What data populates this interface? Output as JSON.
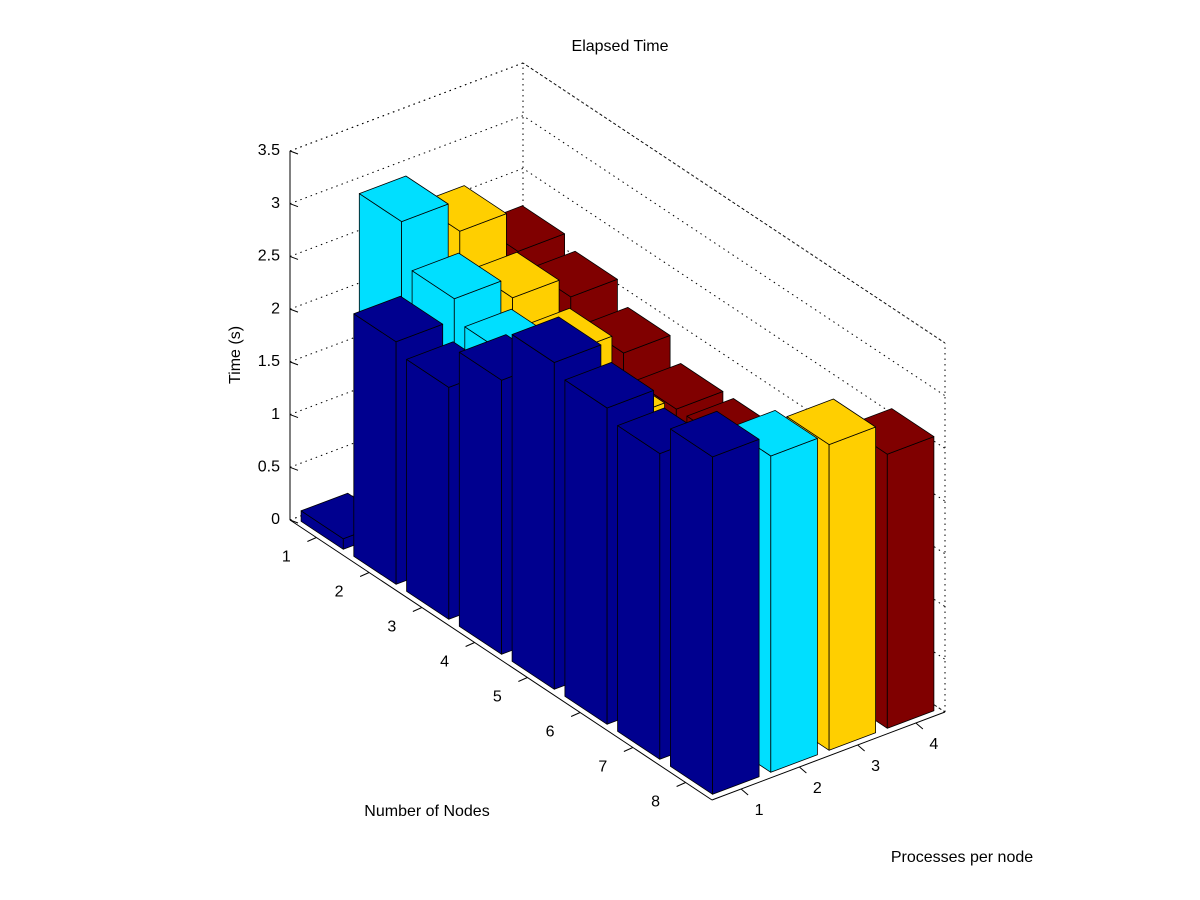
{
  "chart_data": {
    "type": "bar3d",
    "title": "Elapsed Time",
    "xlabel": "Number of Nodes",
    "ylabel": "Processes per node",
    "zlabel": "Time (s)",
    "categories": [
      "1",
      "2",
      "3",
      "4",
      "5",
      "6",
      "7",
      "8"
    ],
    "series": [
      {
        "name": "1",
        "color": "#00008f",
        "values": [
          0.1,
          2.3,
          2.2,
          2.6,
          3.1,
          3.0,
          2.9,
          3.2
        ]
      },
      {
        "name": "2",
        "color": "#00dfff",
        "values": [
          2.9,
          2.5,
          2.3,
          1.6,
          1.5,
          1.4,
          1.9,
          3.0
        ]
      },
      {
        "name": "3",
        "color": "#ffcf00",
        "values": [
          2.6,
          2.3,
          2.1,
          1.8,
          1.6,
          1.5,
          1.6,
          2.9
        ]
      },
      {
        "name": "4",
        "color": "#800000",
        "values": [
          2.2,
          2.1,
          1.9,
          1.7,
          1.7,
          1.6,
          1.6,
          2.6
        ]
      }
    ],
    "zlim": [
      0,
      3.5
    ],
    "zticks": [
      0,
      0.5,
      1,
      1.5,
      2,
      2.5,
      3,
      3.5
    ],
    "grid": true
  }
}
